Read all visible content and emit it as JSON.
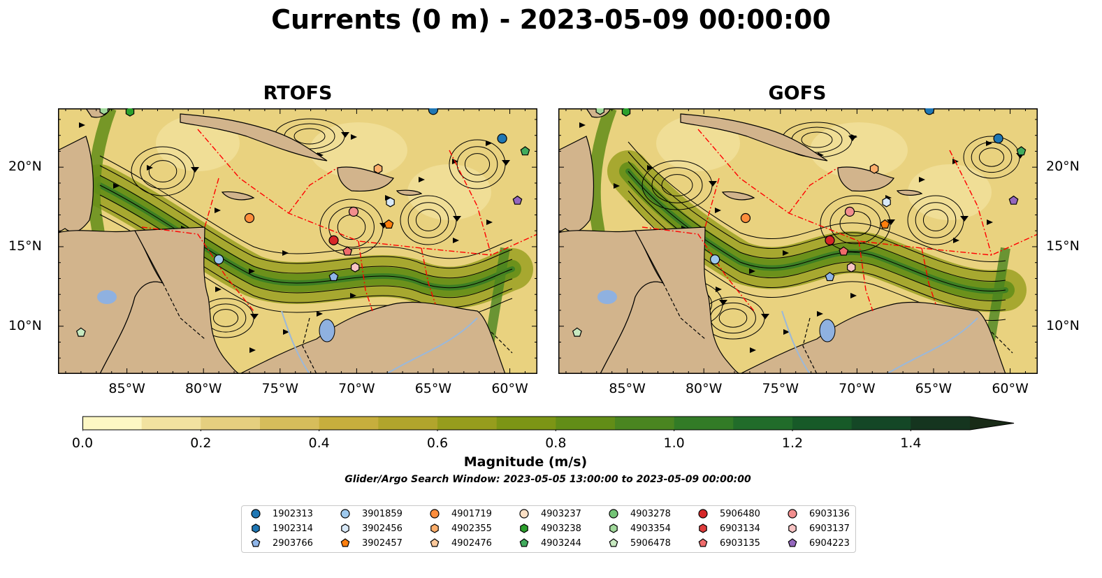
{
  "title": "Currents (0 m) - 2023-05-09 00:00:00",
  "panels": [
    {
      "title": "RTOFS"
    },
    {
      "title": "GOFS"
    }
  ],
  "lon_ticks": [
    "85°W",
    "80°W",
    "75°W",
    "70°W",
    "65°W",
    "60°W"
  ],
  "lat_ticks": [
    "20°N",
    "15°N",
    "10°N"
  ],
  "map_extent": {
    "lon": [
      -89.5,
      -58.2
    ],
    "lat": [
      7.0,
      23.7
    ]
  },
  "colors": {
    "land": "#d2b48c",
    "lake": "#8fb1e0",
    "streamline": "#000000",
    "eez_boundary": "#ff0000",
    "border": "#000000"
  },
  "colorbar": {
    "label": "Magnitude (m/s)",
    "ticks": [
      "0.0",
      "0.2",
      "0.4",
      "0.6",
      "0.8",
      "1.0",
      "1.2",
      "1.4"
    ],
    "range": [
      0,
      1.5
    ],
    "step": 0.1,
    "extend": "max",
    "colors": [
      "#fdf7c4",
      "#f2e2a0",
      "#e5cf7f",
      "#d6bd5b",
      "#c7ae3d",
      "#b1a52c",
      "#969d1d",
      "#7c9515",
      "#628d17",
      "#4a8520",
      "#327b26",
      "#216c2a",
      "#175a28",
      "#144726",
      "#15351f",
      "#192b17"
    ]
  },
  "search_window": "Glider/Argo Search Window: 2023-05-05 13:00:00 to 2023-05-09 00:00:00",
  "legend": [
    {
      "label": "1902313",
      "color": "#1f77b4",
      "marker": "circle"
    },
    {
      "label": "1902314",
      "color": "#1f77b4",
      "marker": "hexagon"
    },
    {
      "label": "2903766",
      "color": "#8fb5e8",
      "marker": "pentagon"
    },
    {
      "label": "3901859",
      "color": "#9ec9ee",
      "marker": "circle"
    },
    {
      "label": "3902456",
      "color": "#d8e9f8",
      "marker": "hexagon"
    },
    {
      "label": "3902457",
      "color": "#ff7f0e",
      "marker": "pentagon"
    },
    {
      "label": "4901719",
      "color": "#fd8d3c",
      "marker": "circle"
    },
    {
      "label": "4902355",
      "color": "#fdae6b",
      "marker": "hexagon"
    },
    {
      "label": "4902476",
      "color": "#fdc99b",
      "marker": "pentagon"
    },
    {
      "label": "4903237",
      "color": "#fde0c5",
      "marker": "circle"
    },
    {
      "label": "4903238",
      "color": "#2ca02c",
      "marker": "hexagon"
    },
    {
      "label": "4903244",
      "color": "#41ab5d",
      "marker": "pentagon"
    },
    {
      "label": "4903278",
      "color": "#74c476",
      "marker": "circle"
    },
    {
      "label": "4903354",
      "color": "#a1d99b",
      "marker": "hexagon"
    },
    {
      "label": "5906478",
      "color": "#c7e9c0",
      "marker": "pentagon"
    },
    {
      "label": "5906480",
      "color": "#d62728",
      "marker": "circle"
    },
    {
      "label": "6903134",
      "color": "#de3c3c",
      "marker": "hexagon"
    },
    {
      "label": "6903135",
      "color": "#ef6b6b",
      "marker": "pentagon"
    },
    {
      "label": "6903136",
      "color": "#f28e8e",
      "marker": "circle"
    },
    {
      "label": "6903137",
      "color": "#f8c4c4",
      "marker": "hexagon"
    },
    {
      "label": "6904223",
      "color": "#9467bd",
      "marker": "pentagon"
    }
  ],
  "float_positions": [
    {
      "id": "1902313",
      "lon": -65.0,
      "lat": 23.6
    },
    {
      "id": "1902313",
      "lon": -60.5,
      "lat": 21.8
    },
    {
      "id": "3901859",
      "lon": -79.0,
      "lat": 14.2
    },
    {
      "id": "4901719",
      "lon": -77.0,
      "lat": 16.8
    },
    {
      "id": "4902355",
      "lon": -68.6,
      "lat": 19.9
    },
    {
      "id": "6903136",
      "lon": -70.2,
      "lat": 17.2
    },
    {
      "id": "3902456",
      "lon": -67.8,
      "lat": 17.8
    },
    {
      "id": "3902457",
      "lon": -67.9,
      "lat": 16.4
    },
    {
      "id": "5906480",
      "lon": -71.5,
      "lat": 15.4
    },
    {
      "id": "6903135",
      "lon": -70.6,
      "lat": 14.7
    },
    {
      "id": "6903137",
      "lon": -70.1,
      "lat": 13.7
    },
    {
      "id": "2903766",
      "lon": -71.5,
      "lat": 13.1
    },
    {
      "id": "4903354",
      "lon": -86.5,
      "lat": 23.6
    },
    {
      "id": "4903238",
      "lon": -84.8,
      "lat": 23.5
    },
    {
      "id": "4903244",
      "lon": -59.0,
      "lat": 21.0
    },
    {
      "id": "6904223",
      "lon": -59.5,
      "lat": 17.9
    },
    {
      "id": "5906478",
      "lon": -88.0,
      "lat": 9.6
    }
  ]
}
